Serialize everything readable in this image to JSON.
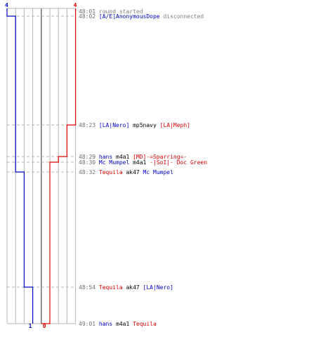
{
  "chart_data": {
    "type": "line",
    "teams": [
      {
        "name": "blue",
        "color": "#0000c8"
      },
      {
        "name": "red",
        "color": "#e00000"
      }
    ],
    "score_labels": {
      "blue_start": "4",
      "blue_end": "1",
      "red_start": "4",
      "red_end": "0"
    },
    "events": [
      {
        "time": "48:01",
        "parts": [
          {
            "text": "round started",
            "color": "#808080"
          }
        ]
      },
      {
        "time": "48:02",
        "parts": [
          {
            "text": "[A/E]AnonymousDope",
            "color": "#0000c8"
          },
          {
            "text": " disconnected",
            "color": "#808080"
          }
        ]
      },
      {
        "time": "48:23",
        "parts": [
          {
            "text": "[LA|Nero]",
            "color": "#0000c8"
          },
          {
            "text": " mp5navy ",
            "color": "#000000"
          },
          {
            "text": "[LA|Meph]",
            "color": "#e00000"
          }
        ]
      },
      {
        "time": "48:29",
        "parts": [
          {
            "text": "hans",
            "color": "#0000c8"
          },
          {
            "text": " m4a1 ",
            "color": "#000000"
          },
          {
            "text": "[MD]-=Sparring=-",
            "color": "#e00000"
          }
        ]
      },
      {
        "time": "48:30",
        "parts": [
          {
            "text": "Mc Mumpel",
            "color": "#0000c8"
          },
          {
            "text": " m4a1 ",
            "color": "#000000"
          },
          {
            "text": "-|SoI|- Doc Green",
            "color": "#e00000"
          }
        ]
      },
      {
        "time": "48:32",
        "parts": [
          {
            "text": "Tequila",
            "color": "#e00000"
          },
          {
            "text": " ak47 ",
            "color": "#000000"
          },
          {
            "text": "Mc Mumpel",
            "color": "#0000c8"
          }
        ]
      },
      {
        "time": "48:54",
        "parts": [
          {
            "text": "Tequila",
            "color": "#e00000"
          },
          {
            "text": " ak47 ",
            "color": "#000000"
          },
          {
            "text": "[LA|Nero]",
            "color": "#0000c8"
          }
        ]
      },
      {
        "time": "49:01",
        "parts": [
          {
            "text": "hans",
            "color": "#0000c8"
          },
          {
            "text": " m4a1 ",
            "color": "#000000"
          },
          {
            "text": "Tequila",
            "color": "#e00000"
          }
        ]
      }
    ],
    "steps": [
      {
        "blue": 4,
        "red": 4
      },
      {
        "blue": 3,
        "red": 4
      },
      {
        "blue": 3,
        "red": 3
      },
      {
        "blue": 3,
        "red": 2
      },
      {
        "blue": 3,
        "red": 1
      },
      {
        "blue": 2,
        "red": 1
      },
      {
        "blue": 1,
        "red": 1
      },
      {
        "blue": 1,
        "red": 0
      }
    ]
  }
}
